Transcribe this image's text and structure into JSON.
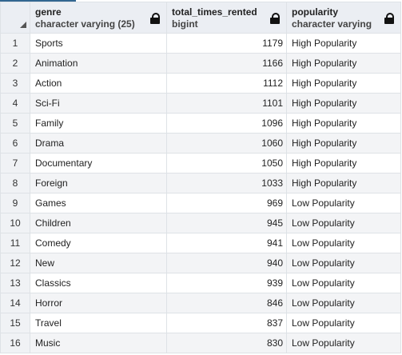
{
  "columns": [
    {
      "name": "genre",
      "type": "character varying (25)"
    },
    {
      "name": "total_times_rented",
      "type": "bigint"
    },
    {
      "name": "popularity",
      "type": "character varying"
    }
  ],
  "rows": [
    {
      "n": "1",
      "genre": "Sports",
      "total": "1179",
      "popularity": "High Popularity"
    },
    {
      "n": "2",
      "genre": "Animation",
      "total": "1166",
      "popularity": "High Popularity"
    },
    {
      "n": "3",
      "genre": "Action",
      "total": "1112",
      "popularity": "High Popularity"
    },
    {
      "n": "4",
      "genre": "Sci-Fi",
      "total": "1101",
      "popularity": "High Popularity"
    },
    {
      "n": "5",
      "genre": "Family",
      "total": "1096",
      "popularity": "High Popularity"
    },
    {
      "n": "6",
      "genre": "Drama",
      "total": "1060",
      "popularity": "High Popularity"
    },
    {
      "n": "7",
      "genre": "Documentary",
      "total": "1050",
      "popularity": "High Popularity"
    },
    {
      "n": "8",
      "genre": "Foreign",
      "total": "1033",
      "popularity": "High Popularity"
    },
    {
      "n": "9",
      "genre": "Games",
      "total": "969",
      "popularity": "Low Popularity"
    },
    {
      "n": "10",
      "genre": "Children",
      "total": "945",
      "popularity": "Low Popularity"
    },
    {
      "n": "11",
      "genre": "Comedy",
      "total": "941",
      "popularity": "Low Popularity"
    },
    {
      "n": "12",
      "genre": "New",
      "total": "940",
      "popularity": "Low Popularity"
    },
    {
      "n": "13",
      "genre": "Classics",
      "total": "939",
      "popularity": "Low Popularity"
    },
    {
      "n": "14",
      "genre": "Horror",
      "total": "846",
      "popularity": "Low Popularity"
    },
    {
      "n": "15",
      "genre": "Travel",
      "total": "837",
      "popularity": "Low Popularity"
    },
    {
      "n": "16",
      "genre": "Music",
      "total": "830",
      "popularity": "Low Popularity"
    }
  ],
  "icons": {
    "header_lock": "lock-icon",
    "select_all": "sort-triangle-icon"
  },
  "colors": {
    "header_bg": "#ebeef3",
    "accent": "#326690",
    "grid": "#dee2e6"
  }
}
